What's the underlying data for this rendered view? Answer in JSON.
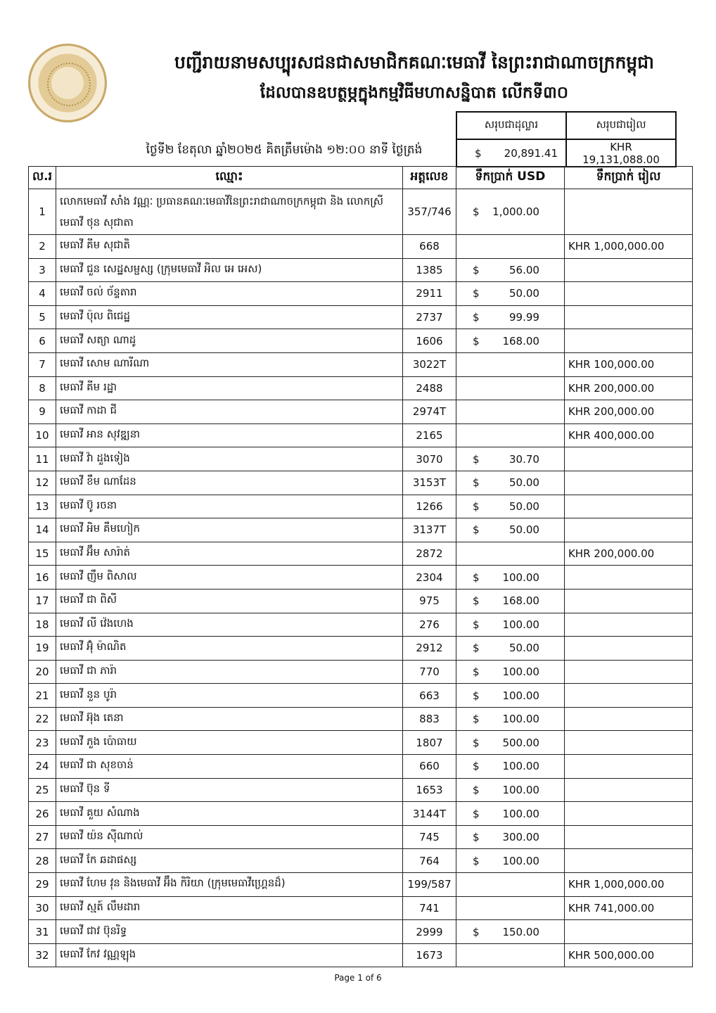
{
  "header": {
    "title_line1": "បញ្ជីរាយនាមសប្បុរសជនជាសមាជិកគណៈមេធាវី នៃព្រះរាជាណាចក្រកម្ពុជា",
    "title_line2": "ដែលបានឧបត្ថម្ភក្នុងកម្មវិធីមហាសន្និបាត លើកទី៣០",
    "date_line": "ថ្ងៃទី២ ខែតុលា ឆ្នាំ២០២៥ គិតត្រឹមម៉ោង ១២:០០ នាទី ថ្ងៃត្រង់",
    "logo_color": "#c9a96a"
  },
  "summary": {
    "usd_label": "សរុបជាដុល្លារ",
    "khr_label": "សរុបជារៀល",
    "usd_symbol": "$",
    "usd_total": "20,891.41",
    "khr_total": "KHR 19,131,088.00"
  },
  "table": {
    "columns": [
      "ល.រ",
      "ឈ្មោះ",
      "អត្តលេខ",
      "ទឹកប្រាក់ USD",
      "ទឹកប្រាក់ រៀល"
    ],
    "rows": [
      {
        "no": "1",
        "name": "លោកមេធាវី សាំង វណ្ណៈ ប្រធានគណៈមេធាវីនៃព្រះរាជាណាចក្រកម្ពុជា និង លោកស្រីមេធាវី ថុន សុជាតា",
        "code": "357/746",
        "usd_sym": "$",
        "usd": "1,000.00",
        "khr": ""
      },
      {
        "no": "2",
        "name": "មេធាវី គីម សុជាតិ",
        "code": "668",
        "usd_sym": "",
        "usd": "",
        "khr": "KHR 1,000,000.00"
      },
      {
        "no": "3",
        "name": "មេធាវី ជួន សេដ្ឋសម្ផស្ស (ក្រុមមេធាវី អិល អេ អេស)",
        "code": "1385",
        "usd_sym": "$",
        "usd": "56.00",
        "khr": ""
      },
      {
        "no": "4",
        "name": "មេធាវី ចល់ ច័ន្ទតារា",
        "code": "2911",
        "usd_sym": "$",
        "usd": "50.00",
        "khr": ""
      },
      {
        "no": "5",
        "name": "មេធាវី ប៉ុល ពិជេដ្ឋ",
        "code": "2737",
        "usd_sym": "$",
        "usd": "99.99",
        "khr": ""
      },
      {
        "no": "6",
        "name": "មេធាវី សត្យា ណាដូ",
        "code": "1606",
        "usd_sym": "$",
        "usd": "168.00",
        "khr": ""
      },
      {
        "no": "7",
        "name": "មេធាវី សោម ណារីណា",
        "code": "3022T",
        "usd_sym": "",
        "usd": "",
        "khr": "KHR 100,000.00"
      },
      {
        "no": "8",
        "name": "មេធាវី គីម រដ្ឋា",
        "code": "2488",
        "usd_sym": "",
        "usd": "",
        "khr": "KHR 200,000.00"
      },
      {
        "no": "9",
        "name": "មេធាវី កាដា ជី",
        "code": "2974T",
        "usd_sym": "",
        "usd": "",
        "khr": "KHR 200,000.00"
      },
      {
        "no": "10",
        "name": "មេធាវី អាន សុវឌ្ឍនា",
        "code": "2165",
        "usd_sym": "",
        "usd": "",
        "khr": "KHR 400,000.00"
      },
      {
        "no": "11",
        "name": "មេធាវី វ៉ា ដួងទៀង",
        "code": "3070",
        "usd_sym": "$",
        "usd": "30.70",
        "khr": ""
      },
      {
        "no": "12",
        "name": "មេធាវី ខឹម ណាដែន",
        "code": "3153T",
        "usd_sym": "$",
        "usd": "50.00",
        "khr": ""
      },
      {
        "no": "13",
        "name": "មេធាវី ប៊ូ រចនា",
        "code": "1266",
        "usd_sym": "$",
        "usd": "50.00",
        "khr": ""
      },
      {
        "no": "14",
        "name": "មេធាវី អិម គឹមហៀក",
        "code": "3137T",
        "usd_sym": "$",
        "usd": "50.00",
        "khr": ""
      },
      {
        "no": "15",
        "name": "មេធាវី អ៊ឹម សារ៉ាត់",
        "code": "2872",
        "usd_sym": "",
        "usd": "",
        "khr": "KHR 200,000.00"
      },
      {
        "no": "16",
        "name": "មេធាវី ញឹម ពិសាល",
        "code": "2304",
        "usd_sym": "$",
        "usd": "100.00",
        "khr": ""
      },
      {
        "no": "17",
        "name": "មេធាវី ជា ពិសី",
        "code": "975",
        "usd_sym": "$",
        "usd": "168.00",
        "khr": ""
      },
      {
        "no": "18",
        "name": "មេធាវី លី វ៉េងហេង",
        "code": "276",
        "usd_sym": "$",
        "usd": "100.00",
        "khr": ""
      },
      {
        "no": "19",
        "name": "មេធាវី អ៊ុំ ម៉ាណិត",
        "code": "2912",
        "usd_sym": "$",
        "usd": "50.00",
        "khr": ""
      },
      {
        "no": "20",
        "name": "មេធាវី ជា ភារ៉ា",
        "code": "770",
        "usd_sym": "$",
        "usd": "100.00",
        "khr": ""
      },
      {
        "no": "21",
        "name": "មេធាវី នួន បូរ៉ា",
        "code": "663",
        "usd_sym": "$",
        "usd": "100.00",
        "khr": ""
      },
      {
        "no": "22",
        "name": "មេធាវី អ៊ុង តេនា",
        "code": "883",
        "usd_sym": "$",
        "usd": "100.00",
        "khr": ""
      },
      {
        "no": "23",
        "name": "មេធាវី ភួង ប៉ោធាយ",
        "code": "1807",
        "usd_sym": "$",
        "usd": "500.00",
        "khr": ""
      },
      {
        "no": "24",
        "name": "មេធាវី ជា សុខចាន់",
        "code": "660",
        "usd_sym": "$",
        "usd": "100.00",
        "khr": ""
      },
      {
        "no": "25",
        "name": "មេធាវី ប៊ុន ទី",
        "code": "1653",
        "usd_sym": "$",
        "usd": "100.00",
        "khr": ""
      },
      {
        "no": "26",
        "name": "មេធាវី គួយ សំណាង",
        "code": "3144T",
        "usd_sym": "$",
        "usd": "100.00",
        "khr": ""
      },
      {
        "no": "27",
        "name": "មេធាវី យ៉ន ស៊ីណាល់",
        "code": "745",
        "usd_sym": "$",
        "usd": "300.00",
        "khr": ""
      },
      {
        "no": "28",
        "name": "មេធាវី កែ ឆដាផស្ស",
        "code": "764",
        "usd_sym": "$",
        "usd": "100.00",
        "khr": ""
      },
      {
        "no": "29",
        "name": "មេធាវី ហែម វុន និងមេធាវី អ៊ឹង កិរិយា (ក្រុមមេធាវីហ្គ្រេនដ៏)",
        "code": "199/587",
        "usd_sym": "",
        "usd": "",
        "khr": "KHR 1,000,000.00"
      },
      {
        "no": "30",
        "name": "មេធាវី ស្មត៍ លឹមដារា",
        "code": "741",
        "usd_sym": "",
        "usd": "",
        "khr": "KHR 741,000.00"
      },
      {
        "no": "31",
        "name": "មេធាវី ជាវ ប៊ុនរិទ្ធ",
        "code": "2999",
        "usd_sym": "$",
        "usd": "150.00",
        "khr": ""
      },
      {
        "no": "32",
        "name": "មេធាវី កែវ វណ្ណឡុង",
        "code": "1673",
        "usd_sym": "",
        "usd": "",
        "khr": "KHR 500,000.00"
      }
    ]
  },
  "footer": {
    "page": "Page 1 of 6"
  }
}
